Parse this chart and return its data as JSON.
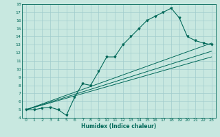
{
  "xlabel": "Humidex (Indice chaleur)",
  "xlim": [
    -0.5,
    23.5
  ],
  "ylim": [
    4,
    18
  ],
  "xticks": [
    0,
    1,
    2,
    3,
    4,
    5,
    6,
    7,
    8,
    9,
    10,
    11,
    12,
    13,
    14,
    15,
    16,
    17,
    18,
    19,
    20,
    21,
    22,
    23
  ],
  "yticks": [
    4,
    5,
    6,
    7,
    8,
    9,
    10,
    11,
    12,
    13,
    14,
    15,
    16,
    17,
    18
  ],
  "bg_color": "#c8e8e0",
  "line_color": "#006858",
  "grid_color": "#a0cccc",
  "line1_x": [
    0,
    1,
    2,
    3,
    4,
    5,
    6,
    7,
    8,
    9,
    10,
    11,
    12,
    13,
    14,
    15,
    16,
    17,
    18,
    19,
    20,
    21,
    22,
    23
  ],
  "line1_y": [
    5.0,
    5.0,
    5.2,
    5.3,
    5.0,
    4.3,
    6.5,
    8.2,
    8.0,
    9.7,
    11.5,
    11.5,
    13.0,
    14.0,
    15.0,
    16.0,
    16.5,
    17.0,
    17.5,
    16.3,
    14.0,
    13.5,
    13.2,
    13.0
  ],
  "line2_x": [
    0,
    23
  ],
  "line2_y": [
    5.0,
    13.2
  ],
  "line3_x": [
    0,
    23
  ],
  "line3_y": [
    5.0,
    12.2
  ],
  "line4_x": [
    0,
    23
  ],
  "line4_y": [
    5.0,
    11.5
  ]
}
